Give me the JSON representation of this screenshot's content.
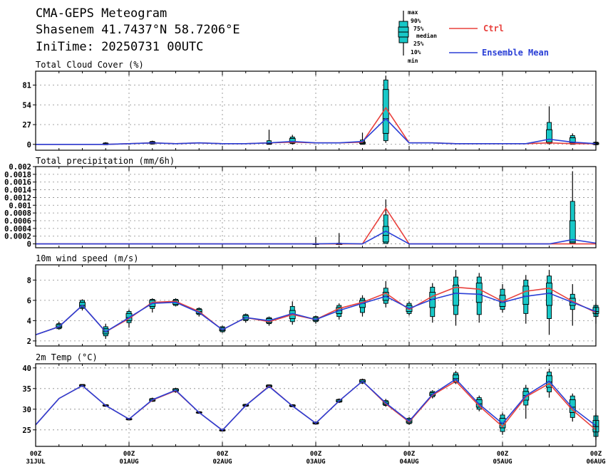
{
  "header": {
    "line1": "CMA-GEPS Meteogram",
    "line2": "Shasenem 41.7437°N 58.7206°E",
    "line3": "IniTime: 20250731 00UTC"
  },
  "legend": {
    "box_labels": [
      "max",
      "90%",
      "75%",
      "median",
      "25%",
      "10%",
      "min"
    ],
    "ctrl_label": "Ctrl",
    "mean_label": "Ensemble Mean",
    "ctrl_color": "#e8403c",
    "mean_color": "#2a3fd6",
    "box_color": "#18c8c8"
  },
  "x_axis": {
    "ticks": [
      {
        "step": 0,
        "hour": "00Z",
        "date": "31JUL"
      },
      {
        "step": 4,
        "hour": "00Z",
        "date": "01AUG"
      },
      {
        "step": 8,
        "hour": "00Z",
        "date": "02AUG"
      },
      {
        "step": 12,
        "hour": "00Z",
        "date": "03AUG"
      },
      {
        "step": 16,
        "hour": "00Z",
        "date": "04AUG"
      },
      {
        "step": 20,
        "hour": "00Z",
        "date": "05AUG"
      },
      {
        "step": 24,
        "hour": "00Z",
        "date": "06AUG"
      }
    ]
  },
  "chart_data": [
    {
      "type": "box",
      "title": "Total Cloud Cover (%)",
      "ylim": [
        -8,
        100
      ],
      "yticks": [
        0,
        27,
        54,
        81
      ],
      "ytick_labels": [
        "0",
        "27",
        "54",
        "81"
      ],
      "x": [
        0,
        1,
        2,
        3,
        4,
        5,
        6,
        7,
        8,
        9,
        10,
        11,
        12,
        13,
        14,
        15,
        16,
        17,
        18,
        19,
        20,
        21,
        22,
        23,
        24
      ],
      "ctrl": [
        0,
        0,
        0,
        0,
        1,
        2,
        1,
        2,
        1,
        1,
        2,
        3,
        2,
        2,
        3,
        50,
        2,
        2,
        1,
        1,
        1,
        1,
        2,
        1,
        1
      ],
      "mean": [
        0,
        0,
        0,
        0,
        1,
        2,
        1,
        2,
        1,
        1,
        2,
        4,
        2,
        2,
        4,
        35,
        2,
        2,
        1,
        1,
        1,
        1,
        7,
        3,
        1
      ],
      "boxes": [
        {
          "x": 3,
          "min": 0,
          "p10": 0,
          "p25": 0,
          "median": 0,
          "p75": 1,
          "p90": 2,
          "max": 3
        },
        {
          "x": 5,
          "min": 0,
          "p10": 1,
          "p25": 1,
          "median": 2,
          "p75": 3,
          "p90": 4,
          "max": 5
        },
        {
          "x": 10,
          "min": 0,
          "p10": 0,
          "p25": 1,
          "median": 1,
          "p75": 2,
          "p90": 5,
          "max": 20
        },
        {
          "x": 11,
          "min": 0,
          "p10": 1,
          "p25": 2,
          "median": 4,
          "p75": 8,
          "p90": 10,
          "max": 13
        },
        {
          "x": 14,
          "min": 0,
          "p10": 0,
          "p25": 1,
          "median": 2,
          "p75": 3,
          "p90": 6,
          "max": 16
        },
        {
          "x": 15,
          "min": 2,
          "p10": 5,
          "p25": 15,
          "median": 35,
          "p75": 75,
          "p90": 88,
          "max": 94
        },
        {
          "x": 22,
          "min": 0,
          "p10": 1,
          "p25": 2,
          "median": 3,
          "p75": 20,
          "p90": 30,
          "max": 52
        },
        {
          "x": 23,
          "min": 0,
          "p10": 0,
          "p25": 1,
          "median": 2,
          "p75": 9,
          "p90": 12,
          "max": 15
        },
        {
          "x": 24,
          "min": 0,
          "p10": 0,
          "p25": 0,
          "median": 1,
          "p75": 2,
          "p90": 3,
          "max": 4
        }
      ]
    },
    {
      "type": "box",
      "title": "Total precipitation (mm/6h)",
      "ylim": [
        -0.0001,
        0.002
      ],
      "yticks": [
        0,
        0.0002,
        0.0004,
        0.0006,
        0.0008,
        0.001,
        0.0012,
        0.0014,
        0.0016,
        0.0018,
        0.002
      ],
      "ytick_labels": [
        "0",
        "0.0002",
        "0.0004",
        "0.0006",
        "0.0008",
        "0.001",
        "0.0012",
        "0.0014",
        "0.0016",
        "0.0018",
        "0.002"
      ],
      "x": [
        0,
        1,
        2,
        3,
        4,
        5,
        6,
        7,
        8,
        9,
        10,
        11,
        12,
        13,
        14,
        15,
        16,
        17,
        18,
        19,
        20,
        21,
        22,
        23,
        24
      ],
      "ctrl": [
        0,
        0,
        0,
        0,
        0,
        0,
        0,
        0,
        0,
        0,
        0,
        0,
        0,
        0,
        0,
        0.00092,
        0,
        0,
        0,
        0,
        0,
        0,
        0,
        0,
        0
      ],
      "mean": [
        0,
        0,
        0,
        0,
        0,
        0,
        0,
        0,
        0,
        0,
        0,
        0,
        0,
        1e-05,
        0,
        0.00033,
        0,
        0,
        0,
        0,
        0,
        0,
        0,
        0.00011,
        2e-05
      ],
      "boxes": [
        {
          "x": 12,
          "min": 0,
          "p10": 0,
          "p25": 0,
          "median": 0,
          "p75": 0,
          "p90": 1e-05,
          "max": 0.00018
        },
        {
          "x": 13,
          "min": 0,
          "p10": 0,
          "p25": 0,
          "median": 0,
          "p75": 0,
          "p90": 2e-05,
          "max": 0.00028
        },
        {
          "x": 15,
          "min": 0,
          "p10": 1e-05,
          "p25": 5e-05,
          "median": 0.00022,
          "p75": 0.00045,
          "p90": 0.00075,
          "max": 0.00115
        },
        {
          "x": 23,
          "min": 0,
          "p10": 0,
          "p25": 2e-05,
          "median": 5e-05,
          "p75": 0.0006,
          "p90": 0.0011,
          "max": 0.00188
        }
      ]
    },
    {
      "type": "box",
      "title": "10m wind speed (m/s)",
      "ylim": [
        1.5,
        9.5
      ],
      "yticks": [
        2,
        4,
        6,
        8
      ],
      "ytick_labels": [
        "2",
        "4",
        "6",
        "8"
      ],
      "x": [
        0,
        1,
        2,
        3,
        4,
        5,
        6,
        7,
        8,
        9,
        10,
        11,
        12,
        13,
        14,
        15,
        16,
        17,
        18,
        19,
        20,
        21,
        22,
        23,
        24
      ],
      "ctrl": [
        2.6,
        3.4,
        5.5,
        2.9,
        4.2,
        5.8,
        5.9,
        4.9,
        3.1,
        4.3,
        3.9,
        4.6,
        4.1,
        5.2,
        5.8,
        6.7,
        5.1,
        6.4,
        7.3,
        7.1,
        5.9,
        6.9,
        7.2,
        5.9,
        4.8
      ],
      "mean": [
        2.6,
        3.4,
        5.5,
        2.9,
        4.3,
        5.7,
        5.8,
        4.8,
        3.1,
        4.3,
        4.0,
        4.7,
        4.1,
        5.0,
        5.7,
        6.4,
        5.2,
        6.1,
        6.7,
        6.6,
        5.8,
        6.4,
        6.7,
        5.8,
        4.9
      ],
      "boxes": [
        {
          "x": 1,
          "min": 3.1,
          "p10": 3.2,
          "p25": 3.3,
          "median": 3.4,
          "p75": 3.6,
          "p90": 3.7,
          "max": 3.9
        },
        {
          "x": 2,
          "min": 5.0,
          "p10": 5.2,
          "p25": 5.3,
          "median": 5.5,
          "p75": 5.8,
          "p90": 6.0,
          "max": 6.1
        },
        {
          "x": 3,
          "min": 2.2,
          "p10": 2.5,
          "p25": 2.7,
          "median": 2.9,
          "p75": 3.2,
          "p90": 3.4,
          "max": 3.7
        },
        {
          "x": 4,
          "min": 3.3,
          "p10": 3.8,
          "p25": 4.0,
          "median": 4.3,
          "p75": 4.7,
          "p90": 4.9,
          "max": 5.1
        },
        {
          "x": 5,
          "min": 4.8,
          "p10": 5.2,
          "p25": 5.4,
          "median": 5.7,
          "p75": 6.0,
          "p90": 6.1,
          "max": 6.2
        },
        {
          "x": 6,
          "min": 5.4,
          "p10": 5.5,
          "p25": 5.6,
          "median": 5.8,
          "p75": 6.0,
          "p90": 6.1,
          "max": 6.2
        },
        {
          "x": 7,
          "min": 4.4,
          "p10": 4.6,
          "p25": 4.7,
          "median": 4.9,
          "p75": 5.1,
          "p90": 5.2,
          "max": 5.3
        },
        {
          "x": 8,
          "min": 2.8,
          "p10": 2.9,
          "p25": 3.0,
          "median": 3.1,
          "p75": 3.3,
          "p90": 3.4,
          "max": 3.5
        },
        {
          "x": 9,
          "min": 3.8,
          "p10": 4.0,
          "p25": 4.1,
          "median": 4.3,
          "p75": 4.5,
          "p90": 4.6,
          "max": 4.7
        },
        {
          "x": 10,
          "min": 3.5,
          "p10": 3.7,
          "p25": 3.8,
          "median": 4.0,
          "p75": 4.2,
          "p90": 4.3,
          "max": 4.4
        },
        {
          "x": 11,
          "min": 3.6,
          "p10": 3.9,
          "p25": 4.2,
          "median": 4.6,
          "p75": 5.0,
          "p90": 5.4,
          "max": 5.9
        },
        {
          "x": 12,
          "min": 3.7,
          "p10": 3.9,
          "p25": 4.0,
          "median": 4.1,
          "p75": 4.3,
          "p90": 4.4,
          "max": 4.5
        },
        {
          "x": 13,
          "min": 4.1,
          "p10": 4.4,
          "p25": 4.7,
          "median": 5.0,
          "p75": 5.3,
          "p90": 5.5,
          "max": 5.7
        },
        {
          "x": 14,
          "min": 4.4,
          "p10": 4.8,
          "p25": 5.3,
          "median": 5.7,
          "p75": 6.0,
          "p90": 6.2,
          "max": 6.5
        },
        {
          "x": 15,
          "min": 5.3,
          "p10": 5.7,
          "p25": 6.0,
          "median": 6.4,
          "p75": 6.8,
          "p90": 7.2,
          "max": 7.9
        },
        {
          "x": 16,
          "min": 4.5,
          "p10": 4.7,
          "p25": 4.9,
          "median": 5.2,
          "p75": 5.5,
          "p90": 5.7,
          "max": 5.9
        },
        {
          "x": 17,
          "min": 3.8,
          "p10": 4.4,
          "p25": 5.3,
          "median": 6.1,
          "p75": 6.8,
          "p90": 7.3,
          "max": 7.7
        },
        {
          "x": 18,
          "min": 3.5,
          "p10": 4.6,
          "p25": 5.5,
          "median": 6.7,
          "p75": 7.5,
          "p90": 8.3,
          "max": 9.0
        },
        {
          "x": 19,
          "min": 3.8,
          "p10": 4.6,
          "p25": 5.8,
          "median": 6.6,
          "p75": 7.7,
          "p90": 8.3,
          "max": 8.7
        },
        {
          "x": 20,
          "min": 4.8,
          "p10": 5.1,
          "p25": 5.4,
          "median": 5.8,
          "p75": 6.5,
          "p90": 7.1,
          "max": 7.6
        },
        {
          "x": 21,
          "min": 3.7,
          "p10": 4.7,
          "p25": 5.6,
          "median": 6.4,
          "p75": 7.4,
          "p90": 8.0,
          "max": 8.5
        },
        {
          "x": 22,
          "min": 2.6,
          "p10": 4.2,
          "p25": 5.5,
          "median": 6.7,
          "p75": 7.7,
          "p90": 8.4,
          "max": 9.0
        },
        {
          "x": 23,
          "min": 3.5,
          "p10": 5.1,
          "p25": 5.5,
          "median": 5.8,
          "p75": 6.2,
          "p90": 6.6,
          "max": 7.6
        },
        {
          "x": 24,
          "min": 3.7,
          "p10": 4.4,
          "p25": 4.7,
          "median": 4.9,
          "p75": 5.3,
          "p90": 5.5,
          "max": 5.7
        }
      ]
    },
    {
      "type": "box",
      "title": "2m Temp (°C)",
      "ylim": [
        21,
        41
      ],
      "yticks": [
        25,
        30,
        35,
        40
      ],
      "ytick_labels": [
        "25",
        "30",
        "35",
        "40"
      ],
      "x": [
        0,
        1,
        2,
        3,
        4,
        5,
        6,
        7,
        8,
        9,
        10,
        11,
        12,
        13,
        14,
        15,
        16,
        17,
        18,
        19,
        20,
        21,
        22,
        23,
        24
      ],
      "ctrl": [
        26.2,
        32.6,
        35.7,
        30.9,
        27.6,
        32.2,
        34.5,
        29.2,
        24.9,
        30.9,
        35.6,
        30.8,
        26.6,
        32.0,
        36.8,
        31.3,
        26.9,
        33.4,
        36.8,
        30.8,
        25.8,
        33.0,
        36.2,
        29.8,
        25.0
      ],
      "mean": [
        26.2,
        32.6,
        35.7,
        30.9,
        27.6,
        32.3,
        34.6,
        29.2,
        24.9,
        30.9,
        35.5,
        30.8,
        26.6,
        32.0,
        36.8,
        31.5,
        27.1,
        33.6,
        37.3,
        31.2,
        26.5,
        33.3,
        36.8,
        30.3,
        26.0
      ],
      "boxes": [
        {
          "x": 2,
          "min": 35.4,
          "p10": 35.5,
          "p25": 35.6,
          "median": 35.7,
          "p75": 35.9,
          "p90": 36.0,
          "max": 36.0
        },
        {
          "x": 3,
          "min": 30.6,
          "p10": 30.7,
          "p25": 30.8,
          "median": 30.9,
          "p75": 31.0,
          "p90": 31.1,
          "max": 31.2
        },
        {
          "x": 4,
          "min": 27.3,
          "p10": 27.4,
          "p25": 27.5,
          "median": 27.6,
          "p75": 27.7,
          "p90": 27.8,
          "max": 27.9
        },
        {
          "x": 5,
          "min": 31.8,
          "p10": 31.9,
          "p25": 32.0,
          "median": 32.2,
          "p75": 32.5,
          "p90": 32.6,
          "max": 32.8
        },
        {
          "x": 6,
          "min": 34.0,
          "p10": 34.2,
          "p25": 34.4,
          "median": 34.6,
          "p75": 34.9,
          "p90": 35.0,
          "max": 35.2
        },
        {
          "x": 7,
          "min": 28.9,
          "p10": 29.0,
          "p25": 29.1,
          "median": 29.2,
          "p75": 29.3,
          "p90": 29.4,
          "max": 29.5
        },
        {
          "x": 8,
          "min": 24.6,
          "p10": 24.7,
          "p25": 24.8,
          "median": 24.9,
          "p75": 25.0,
          "p90": 25.1,
          "max": 25.2
        },
        {
          "x": 9,
          "min": 30.6,
          "p10": 30.7,
          "p25": 30.8,
          "median": 30.9,
          "p75": 31.1,
          "p90": 31.2,
          "max": 31.3
        },
        {
          "x": 10,
          "min": 35.1,
          "p10": 35.3,
          "p25": 35.4,
          "median": 35.6,
          "p75": 35.8,
          "p90": 35.9,
          "max": 36.0
        },
        {
          "x": 11,
          "min": 30.5,
          "p10": 30.6,
          "p25": 30.7,
          "median": 30.8,
          "p75": 31.0,
          "p90": 31.1,
          "max": 31.2
        },
        {
          "x": 12,
          "min": 26.3,
          "p10": 26.4,
          "p25": 26.5,
          "median": 26.6,
          "p75": 26.8,
          "p90": 26.9,
          "max": 27.0
        },
        {
          "x": 13,
          "min": 31.5,
          "p10": 31.7,
          "p25": 31.8,
          "median": 32.0,
          "p75": 32.3,
          "p90": 32.4,
          "max": 32.6
        },
        {
          "x": 14,
          "min": 36.1,
          "p10": 36.3,
          "p25": 36.5,
          "median": 36.8,
          "p75": 37.1,
          "p90": 37.2,
          "max": 37.4
        },
        {
          "x": 15,
          "min": 30.6,
          "p10": 30.9,
          "p25": 31.1,
          "median": 31.4,
          "p75": 31.8,
          "p90": 32.1,
          "max": 32.5
        },
        {
          "x": 16,
          "min": 26.2,
          "p10": 26.5,
          "p25": 26.7,
          "median": 27.0,
          "p75": 27.5,
          "p90": 27.8,
          "max": 28.1
        },
        {
          "x": 17,
          "min": 32.6,
          "p10": 33.0,
          "p25": 33.3,
          "median": 33.6,
          "p75": 34.0,
          "p90": 34.3,
          "max": 34.6
        },
        {
          "x": 18,
          "min": 36.1,
          "p10": 36.4,
          "p25": 36.8,
          "median": 37.4,
          "p75": 38.3,
          "p90": 38.8,
          "max": 39.3
        },
        {
          "x": 19,
          "min": 29.5,
          "p10": 30.0,
          "p25": 30.5,
          "median": 31.3,
          "p75": 32.3,
          "p90": 32.8,
          "max": 33.3
        },
        {
          "x": 20,
          "min": 23.8,
          "p10": 24.6,
          "p25": 25.5,
          "median": 26.5,
          "p75": 27.8,
          "p90": 28.6,
          "max": 29.2
        },
        {
          "x": 21,
          "min": 27.7,
          "p10": 31.0,
          "p25": 32.2,
          "median": 33.3,
          "p75": 34.3,
          "p90": 35.1,
          "max": 35.9
        },
        {
          "x": 22,
          "min": 32.8,
          "p10": 34.2,
          "p25": 35.3,
          "median": 36.6,
          "p75": 38.1,
          "p90": 39.0,
          "max": 39.8
        },
        {
          "x": 23,
          "min": 27.0,
          "p10": 28.0,
          "p25": 29.2,
          "median": 30.5,
          "p75": 32.3,
          "p90": 33.2,
          "max": 33.8
        },
        {
          "x": 24,
          "min": 22.5,
          "p10": 23.4,
          "p25": 24.5,
          "median": 25.8,
          "p75": 27.3,
          "p90": 28.4,
          "max": 29.0
        }
      ]
    }
  ]
}
